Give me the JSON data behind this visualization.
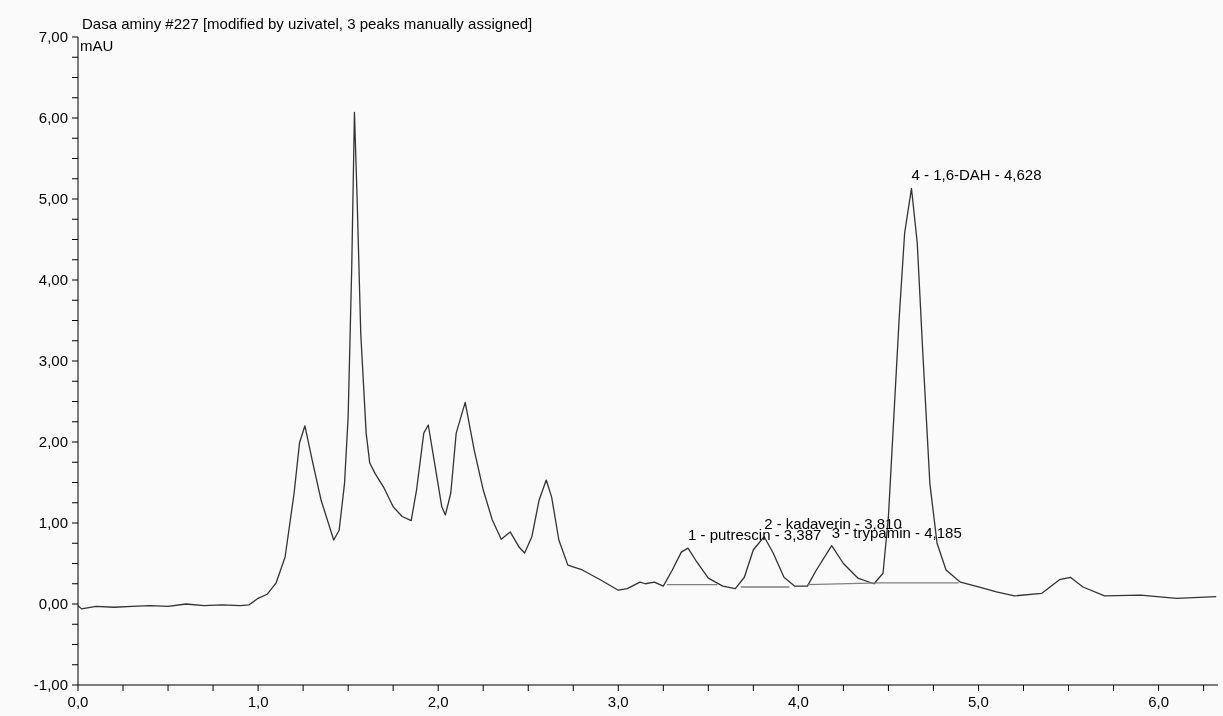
{
  "chart_data": {
    "type": "line",
    "title": "Dasa aminy #227 [modified by uzivatel, 3 peaks manually assigned]",
    "ylabel": "mAU",
    "series": [
      {
        "color": "#333333",
        "x": [
          0,
          0.02,
          0.1,
          0.2,
          0.3,
          0.4,
          0.5,
          0.6,
          0.7,
          0.8,
          0.9,
          0.95,
          1.0,
          1.05,
          1.1,
          1.15,
          1.2,
          1.23,
          1.26,
          1.3,
          1.35,
          1.42,
          1.45,
          1.48,
          1.5,
          1.52,
          1.535,
          1.55,
          1.57,
          1.6,
          1.62,
          1.65,
          1.7,
          1.75,
          1.8,
          1.85,
          1.88,
          1.92,
          1.945,
          1.98,
          2.02,
          2.04,
          2.07,
          2.1,
          2.15,
          2.2,
          2.25,
          2.3,
          2.35,
          2.4,
          2.45,
          2.48,
          2.52,
          2.56,
          2.6,
          2.63,
          2.67,
          2.72,
          2.8,
          2.9,
          3.0,
          3.05,
          3.12,
          3.15,
          3.2,
          3.25,
          3.3,
          3.35,
          3.387,
          3.43,
          3.5,
          3.58,
          3.65,
          3.7,
          3.75,
          3.81,
          3.86,
          3.92,
          3.98,
          4.05,
          4.1,
          4.185,
          4.25,
          4.33,
          4.42,
          4.47,
          4.5,
          4.53,
          4.56,
          4.59,
          4.628,
          4.66,
          4.69,
          4.73,
          4.77,
          4.82,
          4.9,
          5.0,
          5.1,
          5.2,
          5.35,
          5.45,
          5.51,
          5.58,
          5.7,
          5.9,
          6.1,
          6.32
        ],
        "values": [
          -0.02,
          -0.06,
          -0.03,
          -0.04,
          -0.03,
          -0.02,
          -0.03,
          0.0,
          -0.02,
          -0.01,
          -0.02,
          -0.01,
          0.07,
          0.12,
          0.26,
          0.58,
          1.37,
          1.99,
          2.2,
          1.78,
          1.28,
          0.79,
          0.91,
          1.49,
          2.31,
          4.16,
          6.07,
          4.99,
          3.34,
          2.11,
          1.74,
          1.61,
          1.43,
          1.2,
          1.08,
          1.03,
          1.41,
          2.11,
          2.21,
          1.74,
          1.2,
          1.1,
          1.37,
          2.11,
          2.49,
          1.9,
          1.41,
          1.04,
          0.8,
          0.89,
          0.7,
          0.63,
          0.83,
          1.28,
          1.53,
          1.32,
          0.79,
          0.48,
          0.42,
          0.3,
          0.17,
          0.19,
          0.27,
          0.25,
          0.27,
          0.22,
          0.42,
          0.64,
          0.69,
          0.54,
          0.32,
          0.22,
          0.19,
          0.33,
          0.67,
          0.83,
          0.63,
          0.33,
          0.22,
          0.22,
          0.42,
          0.72,
          0.5,
          0.32,
          0.25,
          0.38,
          1.08,
          2.31,
          3.54,
          4.58,
          5.13,
          4.46,
          3.14,
          1.49,
          0.75,
          0.42,
          0.27,
          0.21,
          0.15,
          0.1,
          0.13,
          0.3,
          0.33,
          0.21,
          0.1,
          0.11,
          0.07,
          0.09
        ]
      },
      {
        "type": "line",
        "color": "#808080",
        "x": [
          3.27,
          3.55,
          3.56,
          3.68,
          3.95,
          3.96,
          4.05,
          4.45,
          4.89
        ],
        "values": [
          0.24,
          0.24,
          null,
          0.21,
          0.21,
          null,
          0.24,
          0.26,
          0.26
        ]
      }
    ],
    "annotations": [
      {
        "text": "1 - putrescin - 3,387",
        "x": 3.387,
        "y": 0.69
      },
      {
        "text": "2 - kadaverin - 3,810",
        "x": 3.81,
        "y": 0.83
      },
      {
        "text": "3 - trypamin - 4,185",
        "x": 4.185,
        "y": 0.72
      },
      {
        "text": "4 - 1,6-DAH - 4,628",
        "x": 4.628,
        "y": 5.13
      }
    ],
    "xlim": [
      0,
      6.33
    ],
    "xticks": [
      {
        "value": 0,
        "label": "0,0"
      },
      {
        "value": 0.25,
        "label": null
      },
      {
        "value": 0.5,
        "label": null
      },
      {
        "value": 0.75,
        "label": null
      },
      {
        "value": 1,
        "label": "1,0"
      },
      {
        "value": 1.25,
        "label": null
      },
      {
        "value": 1.5,
        "label": null
      },
      {
        "value": 1.75,
        "label": null
      },
      {
        "value": 2,
        "label": "2,0"
      },
      {
        "value": 2.25,
        "label": null
      },
      {
        "value": 2.5,
        "label": null
      },
      {
        "value": 2.75,
        "label": null
      },
      {
        "value": 3,
        "label": "3,0"
      },
      {
        "value": 3.25,
        "label": null
      },
      {
        "value": 3.5,
        "label": null
      },
      {
        "value": 3.75,
        "label": null
      },
      {
        "value": 4,
        "label": "4,0"
      },
      {
        "value": 4.25,
        "label": null
      },
      {
        "value": 4.5,
        "label": null
      },
      {
        "value": 4.75,
        "label": null
      },
      {
        "value": 5,
        "label": "5,0"
      },
      {
        "value": 5.25,
        "label": null
      },
      {
        "value": 5.5,
        "label": null
      },
      {
        "value": 5.75,
        "label": null
      },
      {
        "value": 6,
        "label": "6,0"
      },
      {
        "value": 6.25,
        "label": null
      }
    ],
    "ylim": [
      -1,
      7
    ],
    "yticks": [
      {
        "value": -1,
        "label": "-1,00"
      },
      {
        "value": -0.75,
        "label": null
      },
      {
        "value": -0.5,
        "label": null
      },
      {
        "value": -0.25,
        "label": null
      },
      {
        "value": 0,
        "label": "0,00"
      },
      {
        "value": 0.25,
        "label": null
      },
      {
        "value": 0.5,
        "label": null
      },
      {
        "value": 0.75,
        "label": null
      },
      {
        "value": 1,
        "label": "1,00"
      },
      {
        "value": 1.25,
        "label": null
      },
      {
        "value": 1.5,
        "label": null
      },
      {
        "value": 1.75,
        "label": null
      },
      {
        "value": 2,
        "label": "2,00"
      },
      {
        "value": 2.25,
        "label": null
      },
      {
        "value": 2.5,
        "label": null
      },
      {
        "value": 2.75,
        "label": null
      },
      {
        "value": 3,
        "label": "3,00"
      },
      {
        "value": 3.25,
        "label": null
      },
      {
        "value": 3.5,
        "label": null
      },
      {
        "value": 3.75,
        "label": null
      },
      {
        "value": 4,
        "label": "4,00"
      },
      {
        "value": 4.25,
        "label": null
      },
      {
        "value": 4.5,
        "label": null
      },
      {
        "value": 4.75,
        "label": null
      },
      {
        "value": 5,
        "label": "5,00"
      },
      {
        "value": 5.25,
        "label": null
      },
      {
        "value": 5.5,
        "label": null
      },
      {
        "value": 5.75,
        "label": null
      },
      {
        "value": 6,
        "label": "6,00"
      },
      {
        "value": 6.25,
        "label": null
      },
      {
        "value": 6.5,
        "label": null
      },
      {
        "value": 6.75,
        "label": null
      },
      {
        "value": 7,
        "label": "7,00"
      }
    ],
    "marker": "none",
    "line_style": "solid"
  }
}
